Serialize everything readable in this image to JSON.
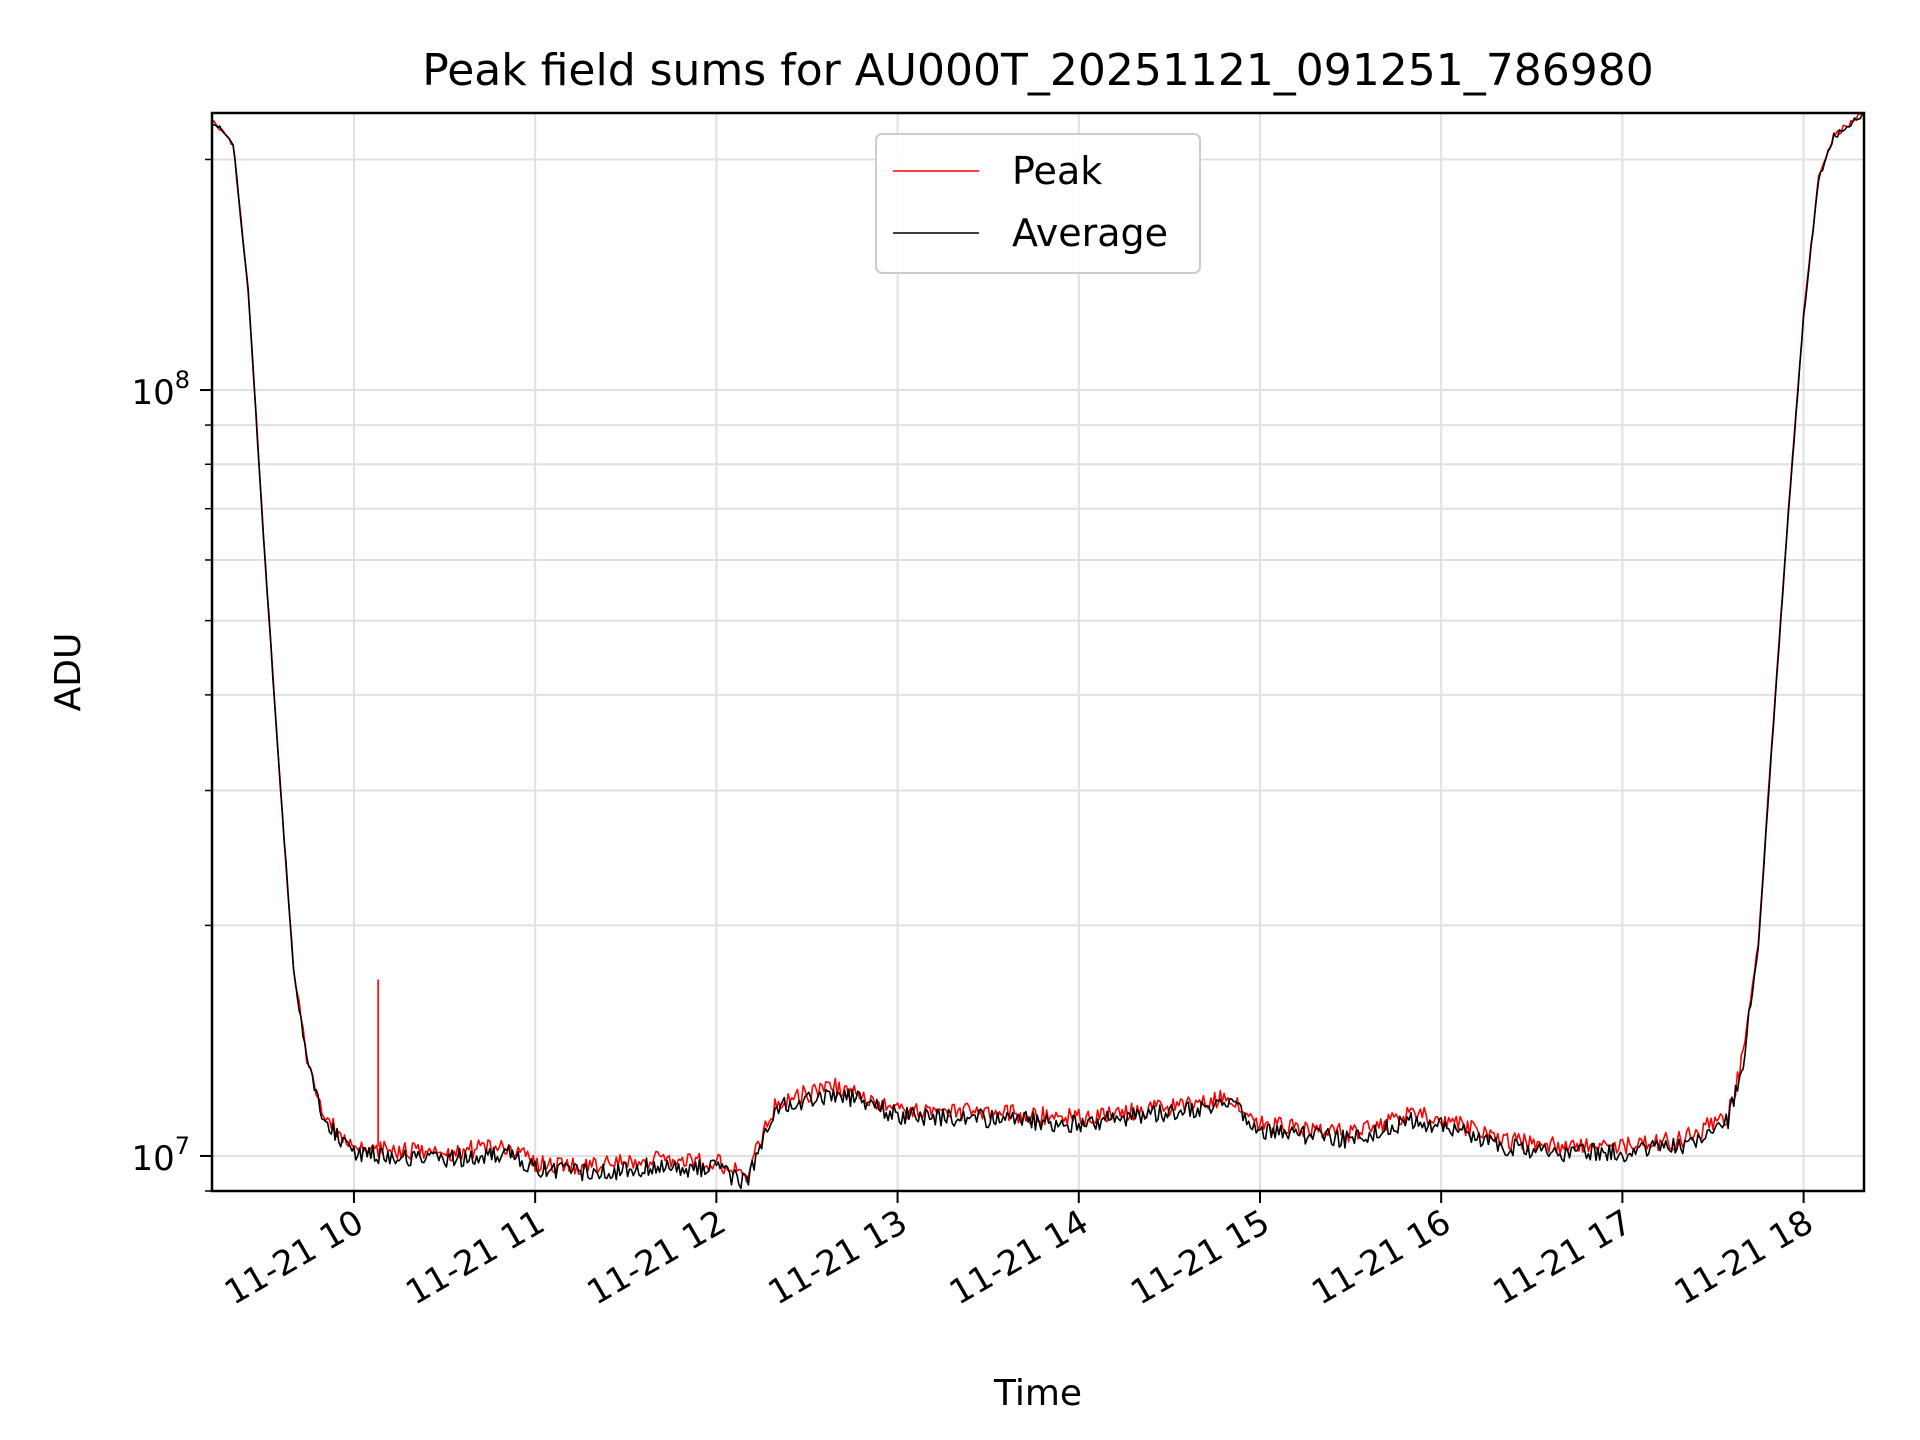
{
  "chart_data": {
    "type": "line",
    "title": "Peak field sums for AU000T_20251121_091251_786980",
    "xlabel": "Time",
    "ylabel": "ADU",
    "yscale": "log",
    "xlim": [
      "11-21 09:13",
      "11-21 18:20"
    ],
    "ylim": [
      9000000,
      230000000
    ],
    "grid": true,
    "legend_position": "top-center",
    "x_ticks": [
      "11-21 10",
      "11-21 11",
      "11-21 12",
      "11-21 13",
      "11-21 14",
      "11-21 15",
      "11-21 16",
      "11-21 17",
      "11-21 18"
    ],
    "y_ticks_major": [
      {
        "label_base": "10",
        "label_exp": "7",
        "value": 10000000
      },
      {
        "label_base": "10",
        "label_exp": "8",
        "value": 100000000
      }
    ],
    "x": [
      "11-21 09:13",
      "11-21 09:20",
      "11-21 09:25",
      "11-21 09:30",
      "11-21 09:35",
      "11-21 09:40",
      "11-21 09:45",
      "11-21 09:50",
      "11-21 10:00",
      "11-21 10:10",
      "11-21 10:30",
      "11-21 10:50",
      "11-21 11:00",
      "11-21 11:20",
      "11-21 11:40",
      "11-21 12:00",
      "11-21 12:10",
      "11-21 12:20",
      "11-21 12:40",
      "11-21 13:00",
      "11-21 13:30",
      "11-21 14:00",
      "11-21 14:30",
      "11-21 14:50",
      "11-21 15:00",
      "11-21 15:30",
      "11-21 15:50",
      "11-21 16:00",
      "11-21 16:20",
      "11-21 16:40",
      "11-21 17:00",
      "11-21 17:20",
      "11-21 17:35",
      "11-21 17:40",
      "11-21 17:45",
      "11-21 17:50",
      "11-21 17:55",
      "11-21 18:00",
      "11-21 18:05",
      "11-21 18:10",
      "11-21 18:20"
    ],
    "series": [
      {
        "name": "Peak",
        "color": "#ff0000",
        "values": [
          225000000,
          210000000,
          135000000,
          65000000,
          33000000,
          17500000,
          13000000,
          11300000,
          10300000,
          10200000,
          10100000,
          10300000,
          9800000,
          9700000,
          9900000,
          9800000,
          9400000,
          11800000,
          12300000,
          11500000,
          11400000,
          11200000,
          11600000,
          11900000,
          11000000,
          10700000,
          11300000,
          11200000,
          10500000,
          10300000,
          10300000,
          10500000,
          11300000,
          13500000,
          19000000,
          37000000,
          70000000,
          125000000,
          190000000,
          215000000,
          230000000
        ],
        "spikes": [
          {
            "x": "11-21 10:08",
            "y": 17000000
          }
        ]
      },
      {
        "name": "Average",
        "color": "#000000",
        "values": [
          225000000,
          210000000,
          135000000,
          65000000,
          33000000,
          17500000,
          13000000,
          11100000,
          10100000,
          10000000,
          9900000,
          10100000,
          9600000,
          9500000,
          9700000,
          9600000,
          9200000,
          11600000,
          12100000,
          11300000,
          11200000,
          11000000,
          11400000,
          11700000,
          10800000,
          10500000,
          11100000,
          11000000,
          10300000,
          10100000,
          10100000,
          10300000,
          11100000,
          13300000,
          18800000,
          36500000,
          69000000,
          124000000,
          189000000,
          214000000,
          230000000
        ]
      }
    ]
  }
}
